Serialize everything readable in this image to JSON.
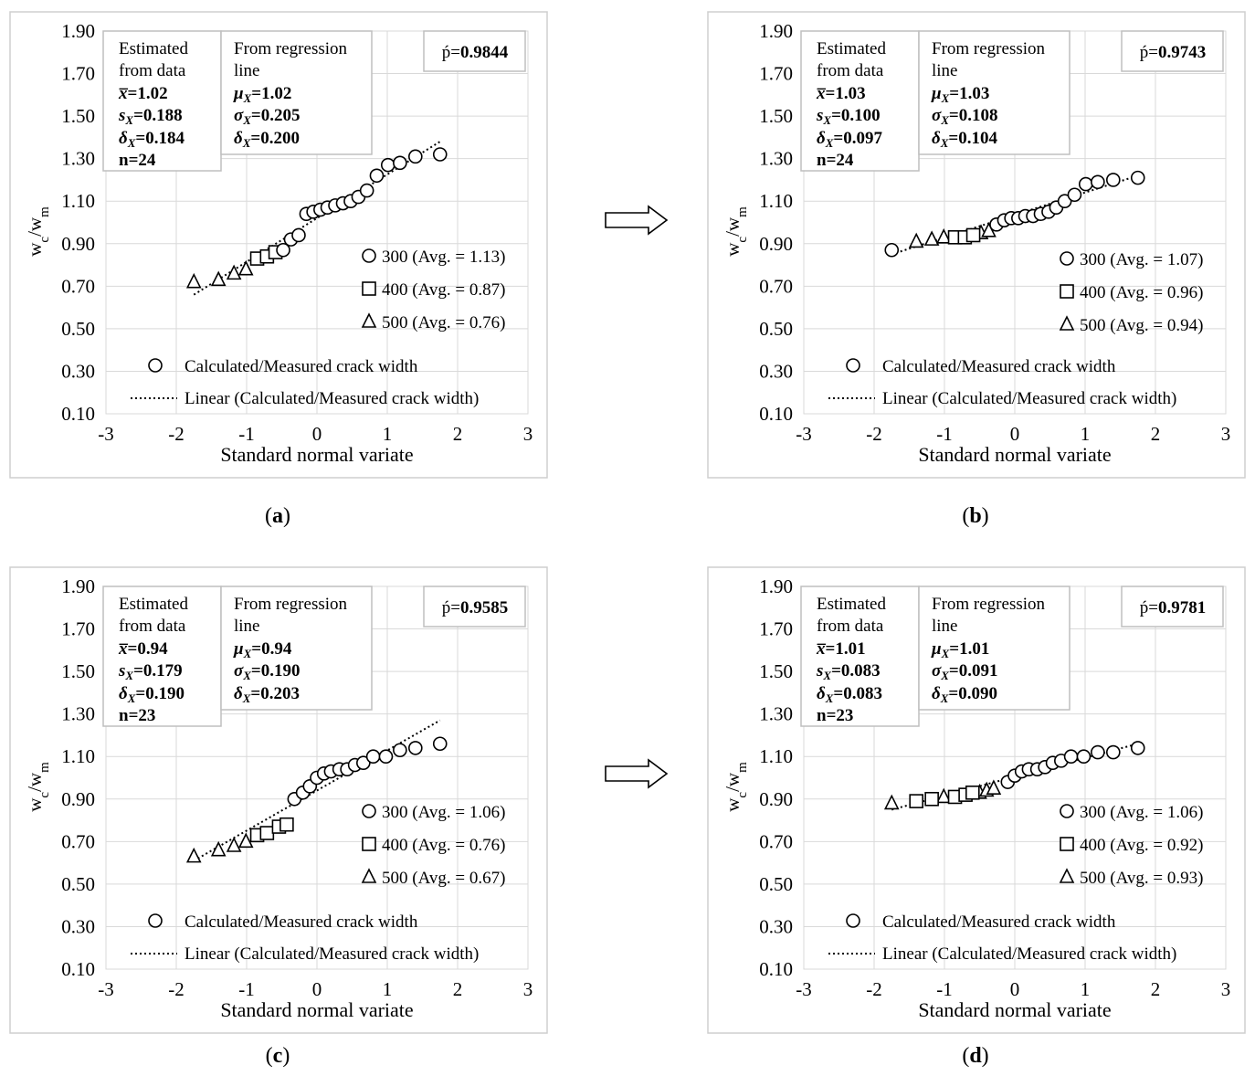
{
  "figure": {
    "y_axis_label_main": "w",
    "y_axis_label_sub1": "c",
    "y_axis_label_sep": "/w",
    "y_axis_label_sub2": "m",
    "x_axis_label": "Standard normal variate",
    "yticks": [
      "0.10",
      "0.30",
      "0.50",
      "0.70",
      "0.90",
      "1.10",
      "1.30",
      "1.50",
      "1.70",
      "1.90"
    ],
    "xticks": [
      "-3",
      "-2",
      "-1",
      "0",
      "1",
      "2",
      "3"
    ],
    "legend_circle_label": "Calculated/Measured crack width",
    "legend_line_label": "Linear (Calculated/Measured crack width)",
    "estimated_header_1": "Estimated",
    "estimated_header_2": "from data",
    "regression_header_1": "From regression",
    "regression_header_2": "line",
    "rho_prefix": "ṕ=",
    "xbar_sym": "x̅",
    "s_sym": "s",
    "delta_sym": "δ",
    "mu_sym": "μ",
    "sigma_sym": "σ",
    "sub_x": "X",
    "eq": "=",
    "n_prefix": "n=",
    "group_prefix_300": "300",
    "group_prefix_400": "400",
    "group_prefix_500": "500",
    "avg_open": "(Avg. = ",
    "avg_close": ")"
  },
  "chart_data": [
    {
      "type": "scatter",
      "panel_label": "a",
      "xlabel": "Standard normal variate",
      "ylabel": "wc/wm",
      "xlim": [
        -3,
        3
      ],
      "ylim": [
        0.1,
        1.9
      ],
      "grid": true,
      "legend_position": "right",
      "rho": "0.9844",
      "estimated": {
        "mean": "1.02",
        "s": "0.188",
        "delta": "0.184",
        "n": "24"
      },
      "regression": {
        "mu": "1.02",
        "sigma": "0.205",
        "delta": "0.200"
      },
      "groups": [
        {
          "name": "300",
          "marker": "circle",
          "avg": "1.13"
        },
        {
          "name": "400",
          "marker": "square",
          "avg": "0.87"
        },
        {
          "name": "500",
          "marker": "triangle",
          "avg": "0.76"
        }
      ],
      "trendline": {
        "x": [
          -1.75,
          1.75
        ],
        "y": [
          0.66,
          1.38
        ]
      },
      "series": [
        {
          "name": "500",
          "marker": "triangle",
          "x": [
            -1.75,
            -1.4,
            -1.18,
            -1.01
          ],
          "y": [
            0.72,
            0.73,
            0.76,
            0.78
          ]
        },
        {
          "name": "400",
          "marker": "square",
          "x": [
            -0.85,
            -0.71,
            -0.59
          ],
          "y": [
            0.83,
            0.84,
            0.86
          ]
        },
        {
          "name": "300",
          "marker": "circle",
          "x": [
            -0.48,
            -0.37,
            -0.26,
            -0.15,
            -0.05,
            0.05,
            0.15,
            0.26,
            0.37,
            0.48,
            0.59,
            0.71,
            0.85,
            1.01,
            1.18,
            1.4,
            1.75
          ],
          "y": [
            0.87,
            0.92,
            0.94,
            1.04,
            1.05,
            1.06,
            1.07,
            1.08,
            1.09,
            1.1,
            1.12,
            1.15,
            1.22,
            1.27,
            1.28,
            1.31,
            1.32
          ]
        }
      ]
    },
    {
      "type": "scatter",
      "panel_label": "b",
      "xlabel": "Standard normal variate",
      "ylabel": "wc/wm",
      "xlim": [
        -3,
        3
      ],
      "ylim": [
        0.1,
        1.9
      ],
      "grid": true,
      "legend_position": "right",
      "rho": "0.9743",
      "estimated": {
        "mean": "1.03",
        "s": "0.100",
        "delta": "0.097",
        "n": "24"
      },
      "regression": {
        "mu": "1.03",
        "sigma": "0.108",
        "delta": "0.104"
      },
      "groups": [
        {
          "name": "300",
          "marker": "circle",
          "avg": "1.07"
        },
        {
          "name": "400",
          "marker": "square",
          "avg": "0.96"
        },
        {
          "name": "500",
          "marker": "triangle",
          "avg": "0.94"
        }
      ],
      "trendline": {
        "x": [
          -1.75,
          1.75
        ],
        "y": [
          0.85,
          1.22
        ]
      },
      "series": [
        {
          "name": "500",
          "marker": "triangle",
          "x": [
            -1.4,
            -1.18,
            -1.01,
            -0.48,
            -0.37
          ],
          "y": [
            0.91,
            0.92,
            0.93,
            0.95,
            0.96
          ]
        },
        {
          "name": "400",
          "marker": "square",
          "x": [
            -0.85,
            -0.71,
            -0.59
          ],
          "y": [
            0.93,
            0.93,
            0.94
          ]
        },
        {
          "name": "300",
          "marker": "circle",
          "x": [
            -1.75,
            -0.26,
            -0.15,
            -0.05,
            0.05,
            0.15,
            0.26,
            0.37,
            0.48,
            0.59,
            0.71,
            0.85,
            1.01,
            1.18,
            1.4,
            1.75
          ],
          "y": [
            0.87,
            0.99,
            1.01,
            1.02,
            1.02,
            1.03,
            1.03,
            1.04,
            1.05,
            1.07,
            1.1,
            1.13,
            1.18,
            1.19,
            1.2,
            1.21
          ]
        }
      ]
    },
    {
      "type": "scatter",
      "panel_label": "c",
      "xlabel": "Standard normal variate",
      "ylabel": "wc/wm",
      "xlim": [
        -3,
        3
      ],
      "ylim": [
        0.1,
        1.9
      ],
      "grid": true,
      "legend_position": "right",
      "rho": "0.9585",
      "estimated": {
        "mean": "0.94",
        "s": "0.179",
        "delta": "0.190",
        "n": "23"
      },
      "regression": {
        "mu": "0.94",
        "sigma": "0.190",
        "delta": "0.203"
      },
      "groups": [
        {
          "name": "300",
          "marker": "circle",
          "avg": "1.06"
        },
        {
          "name": "400",
          "marker": "square",
          "avg": "0.76"
        },
        {
          "name": "500",
          "marker": "triangle",
          "avg": "0.67"
        }
      ],
      "trendline": {
        "x": [
          -1.75,
          1.75
        ],
        "y": [
          0.61,
          1.27
        ]
      },
      "series": [
        {
          "name": "500",
          "marker": "triangle",
          "x": [
            -1.75,
            -1.4,
            -1.18,
            -1.01
          ],
          "y": [
            0.63,
            0.66,
            0.68,
            0.7
          ]
        },
        {
          "name": "400",
          "marker": "square",
          "x": [
            -0.85,
            -0.71,
            -0.54,
            -0.43
          ],
          "y": [
            0.73,
            0.74,
            0.77,
            0.78
          ]
        },
        {
          "name": "300",
          "marker": "circle",
          "x": [
            -0.32,
            -0.2,
            -0.1,
            0,
            0.1,
            0.2,
            0.32,
            0.43,
            0.54,
            0.66,
            0.8,
            0.98,
            1.18,
            1.4,
            1.75
          ],
          "y": [
            0.9,
            0.93,
            0.96,
            1.0,
            1.02,
            1.03,
            1.04,
            1.04,
            1.06,
            1.07,
            1.1,
            1.1,
            1.13,
            1.14,
            1.16
          ]
        }
      ]
    },
    {
      "type": "scatter",
      "panel_label": "d",
      "xlabel": "Standard normal variate",
      "ylabel": "wc/wm",
      "xlim": [
        -3,
        3
      ],
      "ylim": [
        0.1,
        1.9
      ],
      "grid": true,
      "legend_position": "right",
      "rho": "0.9781",
      "estimated": {
        "mean": "1.01",
        "s": "0.083",
        "delta": "0.083",
        "n": "23"
      },
      "regression": {
        "mu": "1.01",
        "sigma": "0.091",
        "delta": "0.090"
      },
      "groups": [
        {
          "name": "300",
          "marker": "circle",
          "avg": "1.06"
        },
        {
          "name": "400",
          "marker": "square",
          "avg": "0.92"
        },
        {
          "name": "500",
          "marker": "triangle",
          "avg": "0.93"
        }
      ],
      "trendline": {
        "x": [
          -1.75,
          1.75
        ],
        "y": [
          0.85,
          1.16
        ]
      },
      "series": [
        {
          "name": "500",
          "marker": "triangle",
          "x": [
            -1.75,
            -1.01,
            -0.5,
            -0.4,
            -0.3
          ],
          "y": [
            0.88,
            0.91,
            0.93,
            0.94,
            0.95
          ]
        },
        {
          "name": "400",
          "marker": "square",
          "x": [
            -1.4,
            -1.18,
            -0.85,
            -0.7,
            -0.6
          ],
          "y": [
            0.89,
            0.9,
            0.91,
            0.92,
            0.93
          ]
        },
        {
          "name": "300",
          "marker": "circle",
          "x": [
            -0.1,
            0,
            0.1,
            0.2,
            0.32,
            0.43,
            0.54,
            0.66,
            0.8,
            0.98,
            1.18,
            1.4,
            1.75
          ],
          "y": [
            0.98,
            1.01,
            1.03,
            1.04,
            1.04,
            1.05,
            1.07,
            1.08,
            1.1,
            1.1,
            1.12,
            1.12,
            1.14
          ]
        }
      ]
    }
  ]
}
